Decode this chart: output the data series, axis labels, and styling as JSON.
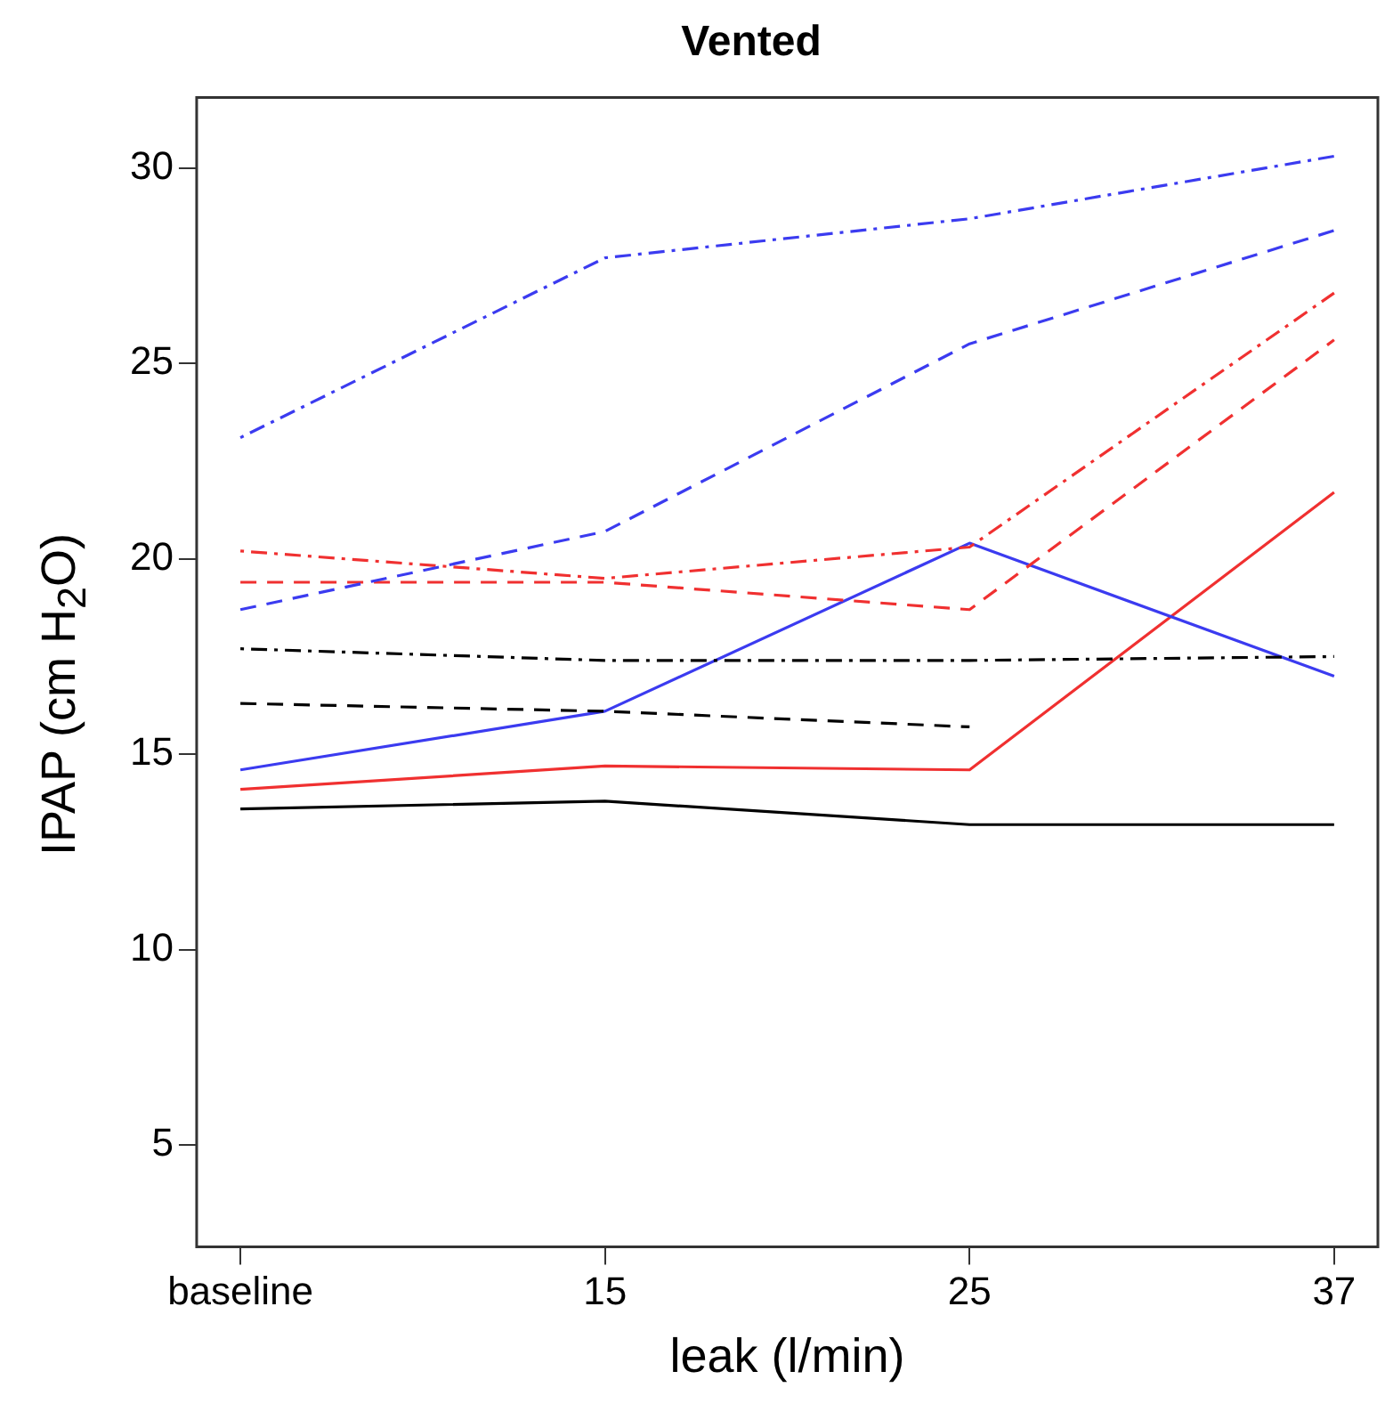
{
  "chart_data": {
    "type": "line",
    "title": "Vented",
    "xlabel": "leak (l/min)",
    "ylabel": "IPAP (cm H$_{2}$O)",
    "categories": [
      "baseline",
      "15",
      "25",
      "37"
    ],
    "ylim": [
      2.4,
      31.8
    ],
    "yticks": [
      5,
      10,
      15,
      20,
      25,
      30
    ],
    "grid": false,
    "legend": false,
    "marker": "none",
    "series": [
      {
        "color": "#3b3bf0",
        "line_style": "dashdot",
        "values": [
          23.1,
          27.7,
          28.7,
          30.3
        ]
      },
      {
        "color": "#3b3bf0",
        "line_style": "dashed",
        "values": [
          18.7,
          20.7,
          25.5,
          28.4
        ]
      },
      {
        "color": "#f03030",
        "line_style": "dashdot",
        "values": [
          20.2,
          19.5,
          20.3,
          26.8
        ]
      },
      {
        "color": "#f03030",
        "line_style": "dashed",
        "values": [
          19.4,
          19.4,
          18.7,
          25.6
        ]
      },
      {
        "color": "#000000",
        "line_style": "dashdot",
        "values": [
          17.7,
          17.4,
          17.4,
          17.5
        ]
      },
      {
        "color": "#000000",
        "line_style": "dashed",
        "values": [
          16.3,
          16.1,
          15.7,
          null
        ]
      },
      {
        "color": "#3b3bf0",
        "line_style": "solid",
        "values": [
          14.6,
          16.1,
          20.4,
          17.0
        ]
      },
      {
        "color": "#f03030",
        "line_style": "solid",
        "values": [
          14.1,
          14.7,
          14.6,
          21.7
        ]
      },
      {
        "color": "#000000",
        "line_style": "solid",
        "values": [
          13.6,
          13.8,
          13.2,
          13.2
        ]
      }
    ]
  }
}
